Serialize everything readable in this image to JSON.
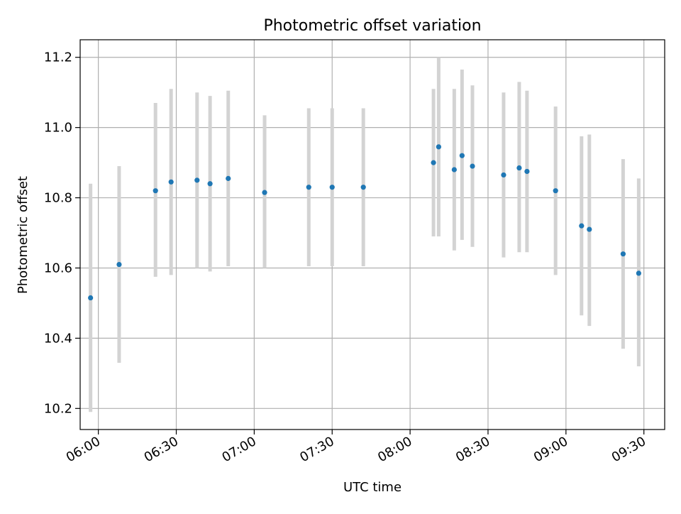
{
  "chart_data": {
    "type": "scatter",
    "title": "Photometric offset variation",
    "xlabel": "UTC time",
    "ylabel": "Photometric offset",
    "x_axis": {
      "unit": "UTC time (hh:mm)",
      "range": [
        "05:53",
        "09:38"
      ],
      "ticks": [
        "06:00",
        "06:30",
        "07:00",
        "07:30",
        "08:00",
        "08:30",
        "09:00",
        "09:30"
      ]
    },
    "y_axis": {
      "range": [
        10.14,
        11.25
      ],
      "ticks": [
        "10.2",
        "10.4",
        "10.6",
        "10.8",
        "11.0",
        "11.2"
      ]
    },
    "grid": true,
    "legend": "none",
    "colors": {
      "points": "#1f77b4",
      "error_bars": "#d3d3d3",
      "grid": "#b0b0b0"
    },
    "points": [
      {
        "x": "05:57",
        "y": 10.515,
        "ylow": 10.19,
        "yhigh": 10.84
      },
      {
        "x": "06:08",
        "y": 10.61,
        "ylow": 10.33,
        "yhigh": 10.89
      },
      {
        "x": "06:22",
        "y": 10.82,
        "ylow": 10.575,
        "yhigh": 11.07
      },
      {
        "x": "06:28",
        "y": 10.845,
        "ylow": 10.58,
        "yhigh": 11.11
      },
      {
        "x": "06:38",
        "y": 10.85,
        "ylow": 10.6,
        "yhigh": 11.1
      },
      {
        "x": "06:43",
        "y": 10.84,
        "ylow": 10.59,
        "yhigh": 11.09
      },
      {
        "x": "06:50",
        "y": 10.855,
        "ylow": 10.605,
        "yhigh": 11.105
      },
      {
        "x": "07:04",
        "y": 10.815,
        "ylow": 10.6,
        "yhigh": 11.035
      },
      {
        "x": "07:21",
        "y": 10.83,
        "ylow": 10.605,
        "yhigh": 11.055
      },
      {
        "x": "07:30",
        "y": 10.83,
        "ylow": 10.605,
        "yhigh": 11.055
      },
      {
        "x": "07:42",
        "y": 10.83,
        "ylow": 10.605,
        "yhigh": 11.055
      },
      {
        "x": "08:09",
        "y": 10.9,
        "ylow": 10.69,
        "yhigh": 11.11
      },
      {
        "x": "08:11",
        "y": 10.945,
        "ylow": 10.69,
        "yhigh": 11.2
      },
      {
        "x": "08:17",
        "y": 10.88,
        "ylow": 10.65,
        "yhigh": 11.11
      },
      {
        "x": "08:20",
        "y": 10.92,
        "ylow": 10.68,
        "yhigh": 11.165
      },
      {
        "x": "08:24",
        "y": 10.89,
        "ylow": 10.66,
        "yhigh": 11.12
      },
      {
        "x": "08:36",
        "y": 10.865,
        "ylow": 10.63,
        "yhigh": 11.1
      },
      {
        "x": "08:42",
        "y": 10.885,
        "ylow": 10.645,
        "yhigh": 11.13
      },
      {
        "x": "08:45",
        "y": 10.875,
        "ylow": 10.645,
        "yhigh": 11.105
      },
      {
        "x": "08:56",
        "y": 10.82,
        "ylow": 10.58,
        "yhigh": 11.06
      },
      {
        "x": "09:06",
        "y": 10.72,
        "ylow": 10.465,
        "yhigh": 10.975
      },
      {
        "x": "09:09",
        "y": 10.71,
        "ylow": 10.435,
        "yhigh": 10.98
      },
      {
        "x": "09:22",
        "y": 10.64,
        "ylow": 10.37,
        "yhigh": 10.91
      },
      {
        "x": "09:28",
        "y": 10.585,
        "ylow": 10.32,
        "yhigh": 10.855
      }
    ]
  }
}
